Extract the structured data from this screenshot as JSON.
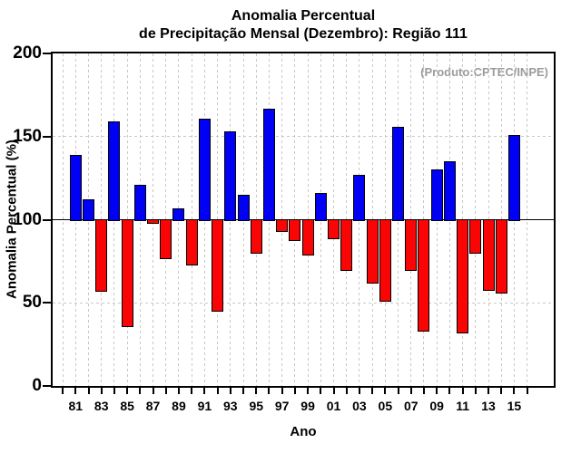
{
  "page": {
    "title_line1": "Anomalia Percentual",
    "title_line2": "de Precipitação Mensal (Dezembro): Região 111",
    "annotation": "(Produto:CPTEC/INPE)"
  },
  "chart_data": {
    "type": "bar",
    "title": "Anomalia Percentual de Precipitação Mensal (Dezembro): Região 111",
    "title_line1": "Anomalia Percentual",
    "title_line2": "de Precipitação Mensal (Dezembro): Região 111",
    "annotation": "(Produto:CPTEC/INPE)",
    "xlabel": "Ano",
    "ylabel": "Anomalia Percentual (%)",
    "ylim": [
      0,
      200
    ],
    "yticks": [
      0,
      50,
      100,
      150,
      200
    ],
    "baseline": 100,
    "categories": [
      1981,
      1982,
      1983,
      1984,
      1985,
      1986,
      1987,
      1988,
      1989,
      1990,
      1991,
      1992,
      1993,
      1994,
      1995,
      1996,
      1997,
      1998,
      1999,
      2000,
      2001,
      2002,
      2003,
      2004,
      2005,
      2006,
      2007,
      2008,
      2009,
      2010,
      2011,
      2012,
      2013,
      2014,
      2015
    ],
    "values": [
      139,
      112,
      57,
      159,
      36,
      121,
      98,
      77,
      107,
      73,
      161,
      45,
      153,
      115,
      80,
      167,
      93,
      88,
      79,
      116,
      89,
      70,
      127,
      62,
      51,
      156,
      70,
      33,
      130,
      135,
      32,
      80,
      58,
      56,
      151
    ],
    "xtick_labeled_years": [
      1981,
      1983,
      1985,
      1987,
      1989,
      1991,
      1993,
      1995,
      1997,
      1999,
      2001,
      2003,
      2005,
      2007,
      2009,
      2011,
      2013,
      2015
    ],
    "xtick_labels": [
      "81",
      "83",
      "85",
      "87",
      "89",
      "91",
      "93",
      "95",
      "97",
      "99",
      "01",
      "03",
      "05",
      "07",
      "09",
      "11",
      "13",
      "15"
    ],
    "xtick_minor_year_range": [
      1980,
      2016
    ],
    "hgrid_values": [
      50,
      100,
      150
    ],
    "grid": "dashed",
    "legend": "none",
    "colors": {
      "above_baseline": "#0000f5",
      "below_baseline": "#fa0505",
      "grid": "#c8c8c8",
      "axis": "#000000",
      "annotation_text": "#9b9b9b"
    }
  }
}
